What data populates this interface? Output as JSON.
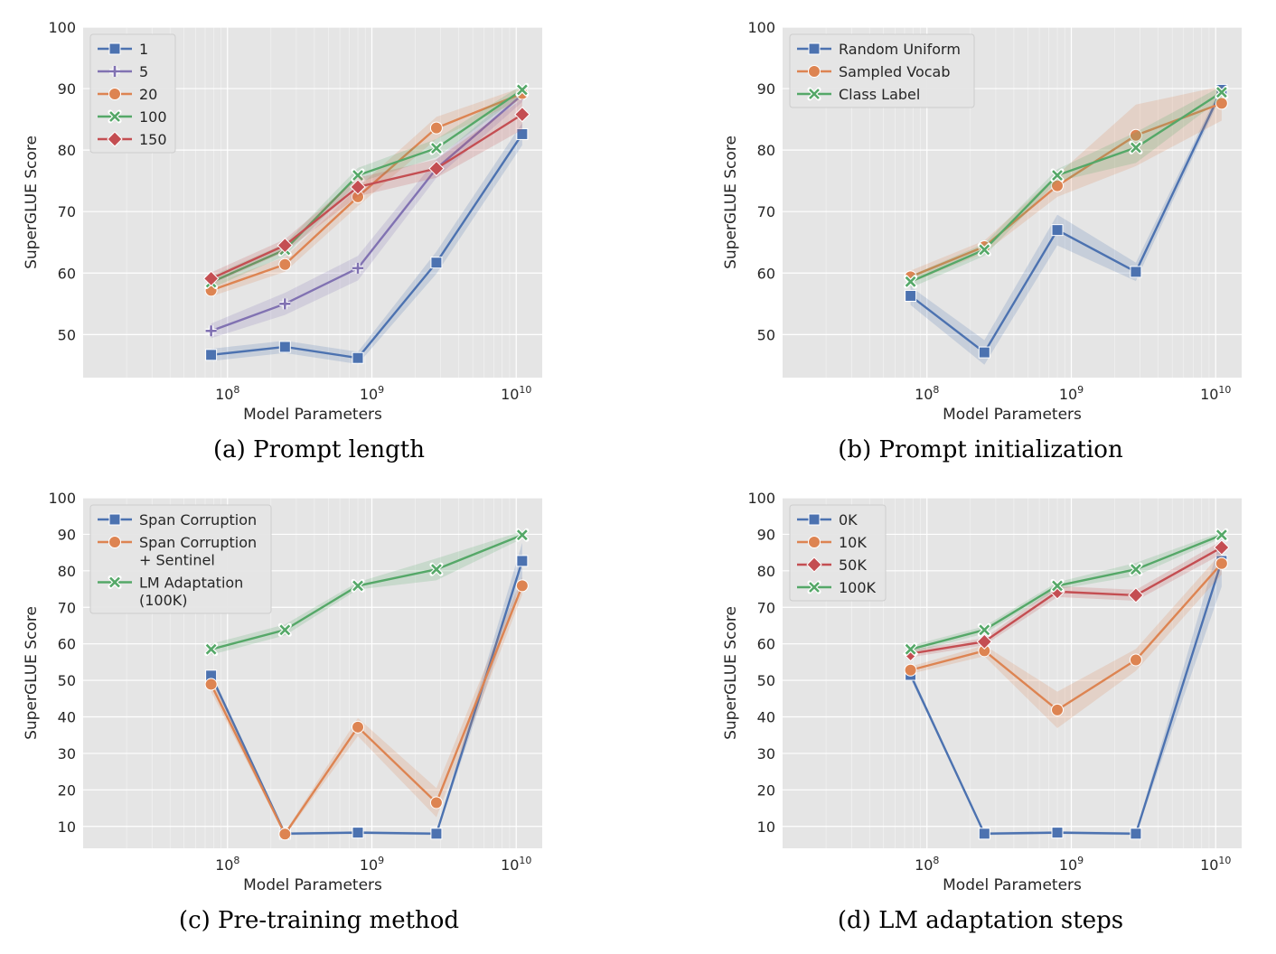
{
  "chart_data": [
    {
      "id": "a",
      "type": "line",
      "caption": "(a) Prompt length",
      "xlabel": "Model Parameters",
      "ylabel": "SuperGLUE Score",
      "xscale": "log",
      "xticks": [
        {
          "base": "10",
          "exp": "8"
        },
        {
          "base": "10",
          "exp": "9"
        },
        {
          "base": "10",
          "exp": "10"
        }
      ],
      "ylim": [
        43,
        100
      ],
      "yticks": [
        "50",
        "60",
        "70",
        "80",
        "90",
        "100"
      ],
      "x": [
        77000000.0,
        250000000.0,
        800000000.0,
        2800000000.0,
        11000000000.0
      ],
      "legend_position": "top-left",
      "series": [
        {
          "name": "1",
          "color": "#4c72b0",
          "marker": "square",
          "values": [
            46.7,
            48.0,
            46.2,
            61.7,
            82.6
          ],
          "band": [
            1.0,
            1.0,
            1.0,
            1.8,
            1.8
          ]
        },
        {
          "name": "5",
          "color": "#8172b2",
          "marker": "plus",
          "values": [
            50.6,
            55.0,
            60.8,
            77.0,
            89.0
          ],
          "band": [
            1.2,
            1.8,
            2.0,
            1.5,
            1.2
          ]
        },
        {
          "name": "20",
          "color": "#dd8452",
          "marker": "circle",
          "values": [
            57.2,
            61.4,
            72.4,
            83.6,
            89.2
          ],
          "band": [
            1.0,
            1.2,
            1.5,
            1.8,
            1.0
          ]
        },
        {
          "name": "100",
          "color": "#55a868",
          "marker": "x",
          "values": [
            58.5,
            63.8,
            75.9,
            80.3,
            89.8
          ],
          "band": [
            1.0,
            1.0,
            1.2,
            1.5,
            0.8
          ]
        },
        {
          "name": "150",
          "color": "#c44e52",
          "marker": "diamond",
          "values": [
            59.1,
            64.5,
            74.0,
            77.0,
            85.8
          ],
          "band": [
            1.0,
            1.0,
            1.5,
            1.5,
            2.5
          ]
        }
      ]
    },
    {
      "id": "b",
      "type": "line",
      "caption": "(b) Prompt initialization",
      "xlabel": "Model Parameters",
      "ylabel": "SuperGLUE Score",
      "xscale": "log",
      "xticks": [
        {
          "base": "10",
          "exp": "8"
        },
        {
          "base": "10",
          "exp": "9"
        },
        {
          "base": "10",
          "exp": "10"
        }
      ],
      "ylim": [
        43,
        100
      ],
      "yticks": [
        "50",
        "60",
        "70",
        "80",
        "90",
        "100"
      ],
      "x": [
        77000000.0,
        250000000.0,
        800000000.0,
        2800000000.0,
        11000000000.0
      ],
      "legend_position": "top-left",
      "series": [
        {
          "name": "Random Uniform",
          "color": "#4c72b0",
          "marker": "square",
          "values": [
            56.3,
            47.1,
            67.0,
            60.2,
            89.8
          ],
          "band": [
            1.5,
            2.0,
            2.5,
            1.5,
            0.8
          ]
        },
        {
          "name": "Sampled Vocab",
          "color": "#dd8452",
          "marker": "circle",
          "values": [
            59.4,
            64.3,
            74.2,
            82.4,
            87.6
          ],
          "band": [
            1.0,
            1.0,
            1.8,
            5.0,
            2.8
          ]
        },
        {
          "name": "Class Label",
          "color": "#55a868",
          "marker": "x",
          "values": [
            58.6,
            63.8,
            75.9,
            80.4,
            89.4
          ],
          "band": [
            1.0,
            1.0,
            1.0,
            2.5,
            1.0
          ]
        }
      ]
    },
    {
      "id": "c",
      "type": "line",
      "caption": "(c) Pre-training method",
      "xlabel": "Model Parameters",
      "ylabel": "SuperGLUE Score",
      "xscale": "log",
      "xticks": [
        {
          "base": "10",
          "exp": "8"
        },
        {
          "base": "10",
          "exp": "9"
        },
        {
          "base": "10",
          "exp": "10"
        }
      ],
      "ylim": [
        4,
        100
      ],
      "yticks": [
        "10",
        "20",
        "30",
        "40",
        "50",
        "60",
        "70",
        "80",
        "90",
        "100"
      ],
      "x": [
        77000000.0,
        250000000.0,
        800000000.0,
        2800000000.0,
        11000000000.0
      ],
      "legend_position": "top-left",
      "series": [
        {
          "name": [
            "Span Corruption"
          ],
          "color": "#4c72b0",
          "marker": "square",
          "values": [
            51.3,
            8.0,
            8.3,
            8.0,
            82.7
          ],
          "band": [
            1.0,
            0.4,
            0.4,
            0.4,
            5.0
          ]
        },
        {
          "name": [
            "Span Corruption",
            "+ Sentinel"
          ],
          "color": "#dd8452",
          "marker": "circle",
          "values": [
            48.9,
            7.9,
            37.2,
            16.5,
            75.9
          ],
          "band": [
            2.0,
            0.5,
            2.5,
            4.0,
            2.5
          ]
        },
        {
          "name": [
            "LM Adaptation",
            "(100K)"
          ],
          "color": "#55a868",
          "marker": "x",
          "values": [
            58.5,
            63.8,
            75.9,
            80.4,
            89.8
          ],
          "band": [
            1.5,
            1.5,
            1.0,
            3.0,
            1.0
          ]
        }
      ]
    },
    {
      "id": "d",
      "type": "line",
      "caption": "(d) LM adaptation steps",
      "xlabel": "Model Parameters",
      "ylabel": "SuperGLUE Score",
      "xscale": "log",
      "xticks": [
        {
          "base": "10",
          "exp": "8"
        },
        {
          "base": "10",
          "exp": "9"
        },
        {
          "base": "10",
          "exp": "10"
        }
      ],
      "ylim": [
        4,
        100
      ],
      "yticks": [
        "10",
        "20",
        "30",
        "40",
        "50",
        "60",
        "70",
        "80",
        "90",
        "100"
      ],
      "x": [
        77000000.0,
        250000000.0,
        800000000.0,
        2800000000.0,
        11000000000.0
      ],
      "legend_position": "top-left",
      "series": [
        {
          "name": "0K",
          "color": "#4c72b0",
          "marker": "square",
          "values": [
            51.5,
            8.0,
            8.3,
            8.0,
            82.7
          ],
          "band": [
            1.0,
            0.4,
            0.4,
            0.4,
            7.0
          ]
        },
        {
          "name": "10K",
          "color": "#dd8452",
          "marker": "circle",
          "values": [
            52.8,
            58.1,
            41.9,
            55.6,
            82.0
          ],
          "band": [
            1.0,
            1.5,
            5.0,
            3.0,
            3.0
          ]
        },
        {
          "name": "50K",
          "color": "#c44e52",
          "marker": "diamond",
          "values": [
            57.3,
            60.6,
            74.3,
            73.3,
            86.4
          ],
          "band": [
            1.0,
            1.0,
            1.5,
            1.5,
            1.8
          ]
        },
        {
          "name": "100K",
          "color": "#55a868",
          "marker": "x",
          "values": [
            58.5,
            63.8,
            75.9,
            80.4,
            89.8
          ],
          "band": [
            1.0,
            1.0,
            1.0,
            1.8,
            0.8
          ]
        }
      ]
    }
  ]
}
